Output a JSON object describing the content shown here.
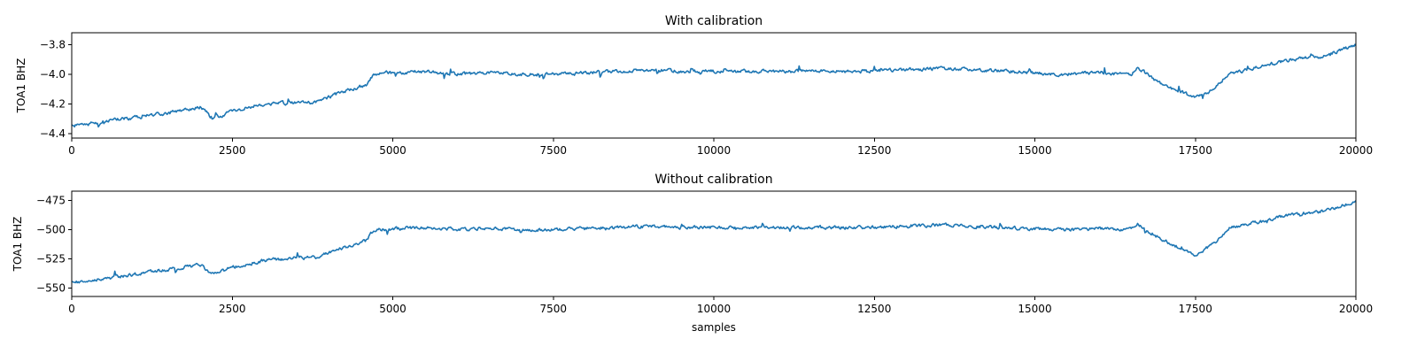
{
  "chart_data": [
    {
      "type": "line",
      "title": "With calibration",
      "xlabel": "",
      "ylabel": "TOA1 BHZ",
      "xlim": [
        0,
        20000
      ],
      "ylim": [
        -4.43,
        -3.72
      ],
      "xticks": [
        0,
        2500,
        5000,
        7500,
        10000,
        12500,
        15000,
        17500,
        20000
      ],
      "yticks": [
        -4.4,
        -4.2,
        -4.0,
        -3.8
      ],
      "ytick_labels": [
        "−4.4",
        "−4.2",
        "−4.0",
        "−3.8"
      ],
      "grid": false,
      "color": "#1f77b4",
      "series": [
        {
          "noise": 0.012,
          "x": [
            0,
            500,
            1000,
            1500,
            2000,
            2200,
            2500,
            3000,
            3500,
            3800,
            4200,
            4600,
            4700,
            5000,
            5500,
            6000,
            6500,
            7000,
            7500,
            8000,
            8500,
            9000,
            9500,
            10000,
            10500,
            11000,
            11500,
            12000,
            12500,
            13000,
            13500,
            14000,
            14500,
            15000,
            15500,
            16000,
            16500,
            16600,
            17000,
            17500,
            17800,
            18000,
            18500,
            19000,
            19500,
            20000
          ],
          "y": [
            -4.35,
            -4.32,
            -4.29,
            -4.26,
            -4.22,
            -4.3,
            -4.25,
            -4.2,
            -4.19,
            -4.19,
            -4.12,
            -4.07,
            -4.0,
            -3.99,
            -3.98,
            -4.0,
            -3.99,
            -4.0,
            -4.0,
            -3.99,
            -3.98,
            -3.97,
            -3.98,
            -3.98,
            -3.98,
            -3.98,
            -3.98,
            -3.98,
            -3.98,
            -3.97,
            -3.96,
            -3.97,
            -3.98,
            -3.99,
            -4.0,
            -3.99,
            -4.0,
            -3.96,
            -4.07,
            -4.16,
            -4.1,
            -4.0,
            -3.95,
            -3.9,
            -3.88,
            -3.8
          ]
        }
      ]
    },
    {
      "type": "line",
      "title": "Without calibration",
      "xlabel": "samples",
      "ylabel": "TOA1 BHZ",
      "xlim": [
        0,
        20000
      ],
      "ylim": [
        -557,
        -467
      ],
      "xticks": [
        0,
        2500,
        5000,
        7500,
        10000,
        12500,
        15000,
        17500,
        20000
      ],
      "yticks": [
        -550,
        -525,
        -500,
        -475
      ],
      "ytick_labels": [
        "−550",
        "−525",
        "−500",
        "−475"
      ],
      "grid": false,
      "color": "#1f77b4",
      "series": [
        {
          "noise": 1.5,
          "x": [
            0,
            500,
            1000,
            1500,
            2000,
            2200,
            2500,
            3000,
            3500,
            3800,
            4200,
            4600,
            4700,
            5000,
            5500,
            6000,
            6500,
            7000,
            7500,
            8000,
            8500,
            9000,
            9500,
            10000,
            10500,
            11000,
            11500,
            12000,
            12500,
            13000,
            13500,
            14000,
            14500,
            15000,
            15500,
            16000,
            16500,
            16600,
            17000,
            17500,
            17800,
            18000,
            18500,
            19000,
            19500,
            20000
          ],
          "y": [
            -545,
            -542,
            -538,
            -534,
            -530,
            -538,
            -532,
            -526,
            -524,
            -524,
            -516,
            -509,
            -500,
            -499,
            -498,
            -500,
            -499,
            -500,
            -500,
            -499,
            -498,
            -497,
            -498,
            -498,
            -498,
            -498,
            -498,
            -498,
            -498,
            -497,
            -496,
            -497,
            -498,
            -499,
            -500,
            -499,
            -500,
            -495,
            -509,
            -521,
            -512,
            -499,
            -493,
            -487,
            -484,
            -476
          ]
        }
      ]
    }
  ]
}
